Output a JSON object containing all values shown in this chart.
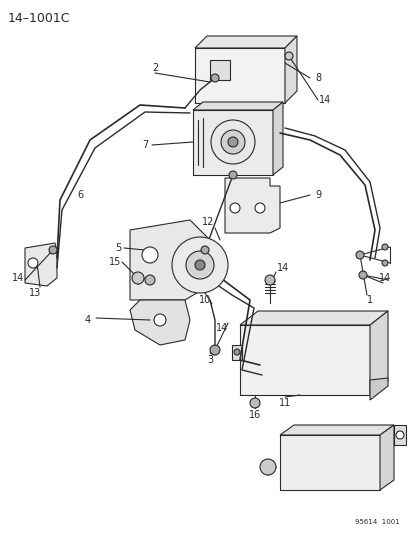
{
  "title": "14–1001C",
  "bg_color": "#ffffff",
  "lc": "#2a2a2a",
  "stamp": "95614  1001",
  "figsize": [
    4.14,
    5.33
  ],
  "dpi": 100
}
